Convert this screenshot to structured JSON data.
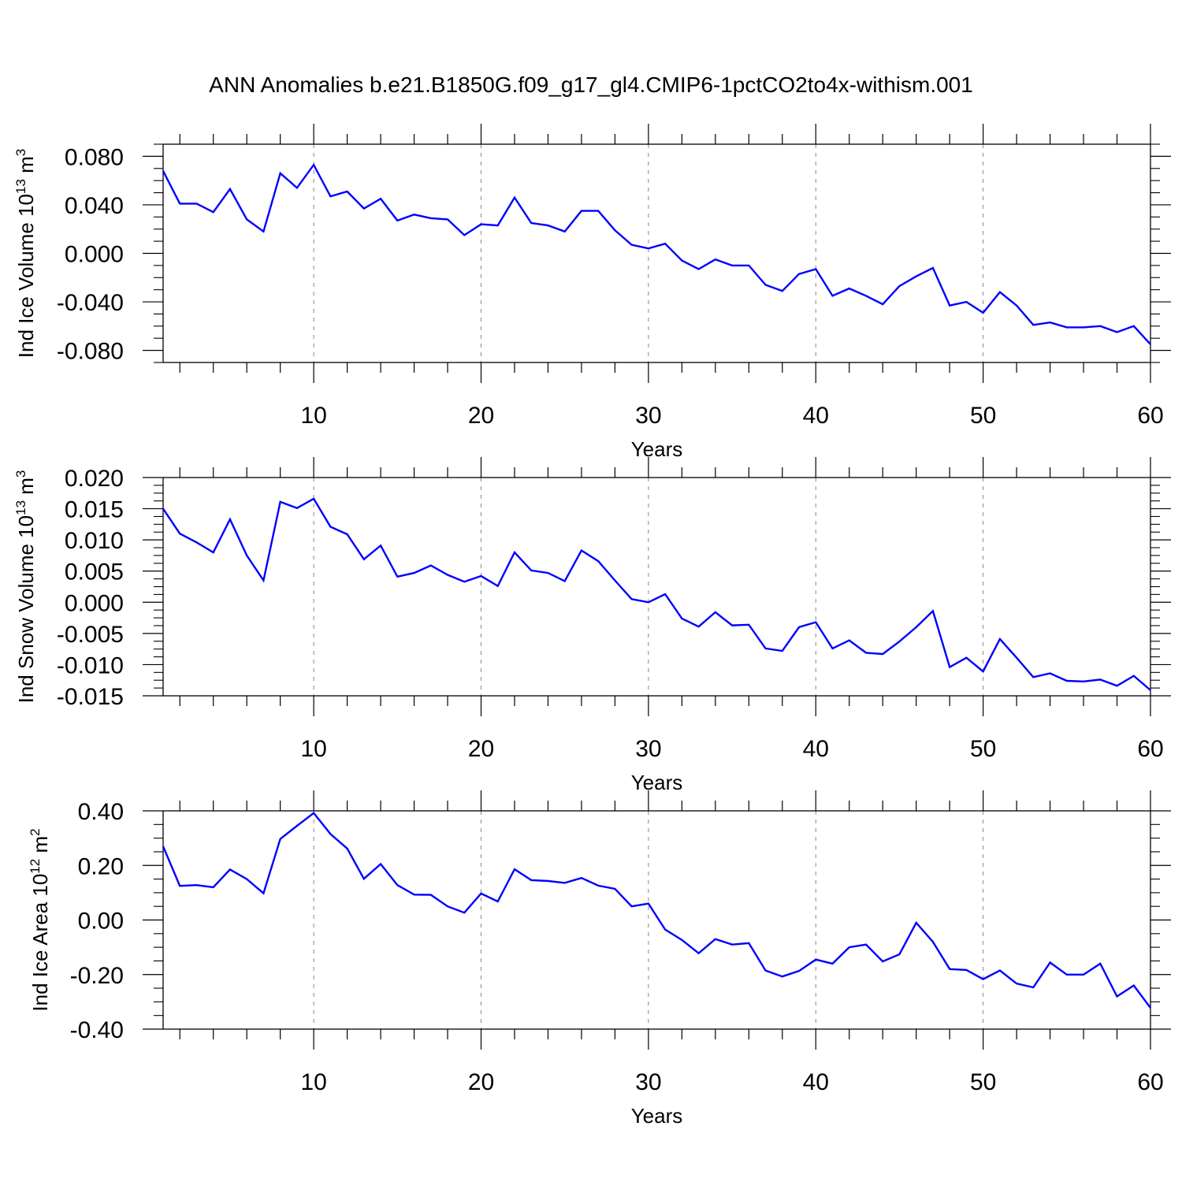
{
  "title": "ANN Anomalies b.e21.B1850G.f09_g17_gl4.CMIP6-1pctCO2to4x-withism.001",
  "colors": {
    "series": "#0000ff",
    "axis": "#000000",
    "grid": "#888888"
  },
  "chart_data": [
    {
      "type": "line",
      "title": "",
      "xlabel": "Years",
      "ylabel": {
        "main": "Ind Ice Volume 10",
        "sup": "13",
        "tail": " m",
        "sup2": "3"
      },
      "xlim": [
        1,
        60
      ],
      "ylim": [
        -0.09,
        0.09
      ],
      "xticks": [
        10,
        20,
        30,
        40,
        50,
        60
      ],
      "yticks": [
        -0.08,
        -0.04,
        0.0,
        0.04,
        0.08
      ],
      "ytick_labels": [
        "-0.080",
        "-0.040",
        "0.000",
        "0.040",
        "0.080"
      ],
      "vgrid": [
        10,
        20,
        30,
        40,
        50
      ],
      "x": [
        1,
        2,
        3,
        4,
        5,
        6,
        7,
        8,
        9,
        10,
        11,
        12,
        13,
        14,
        15,
        16,
        17,
        18,
        19,
        20,
        21,
        22,
        23,
        24,
        25,
        26,
        27,
        28,
        29,
        30,
        31,
        32,
        33,
        34,
        35,
        36,
        37,
        38,
        39,
        40,
        41,
        42,
        43,
        44,
        45,
        46,
        47,
        48,
        49,
        50,
        51,
        52,
        53,
        54,
        55,
        56,
        57,
        58,
        59,
        60
      ],
      "series": [
        {
          "values": [
            0.068,
            0.041,
            0.041,
            0.034,
            0.053,
            0.028,
            0.018,
            0.066,
            0.054,
            0.073,
            0.047,
            0.051,
            0.037,
            0.045,
            0.027,
            0.032,
            0.029,
            0.028,
            0.015,
            0.024,
            0.023,
            0.046,
            0.025,
            0.023,
            0.018,
            0.035,
            0.035,
            0.019,
            0.007,
            0.004,
            0.008,
            -0.006,
            -0.013,
            -0.005,
            -0.01,
            -0.01,
            -0.026,
            -0.031,
            -0.017,
            -0.013,
            -0.035,
            -0.029,
            -0.035,
            -0.042,
            -0.027,
            -0.019,
            -0.012,
            -0.043,
            -0.04,
            -0.049,
            -0.032,
            -0.043,
            -0.059,
            -0.057,
            -0.061,
            -0.061,
            -0.06,
            -0.065,
            -0.06,
            -0.075
          ]
        }
      ]
    },
    {
      "type": "line",
      "title": "",
      "xlabel": "Years",
      "ylabel": {
        "main": "Ind Snow Volume 10",
        "sup": "13",
        "tail": " m",
        "sup2": "3"
      },
      "xlim": [
        1,
        60
      ],
      "ylim": [
        -0.015,
        0.02
      ],
      "xticks": [
        10,
        20,
        30,
        40,
        50,
        60
      ],
      "yticks": [
        -0.015,
        -0.01,
        -0.005,
        0.0,
        0.005,
        0.01,
        0.015,
        0.02
      ],
      "ytick_labels": [
        "-0.015",
        "-0.010",
        "-0.005",
        "0.000",
        "0.005",
        "0.010",
        "0.015",
        "0.020"
      ],
      "vgrid": [
        10,
        20,
        30,
        40,
        50
      ],
      "x": [
        1,
        2,
        3,
        4,
        5,
        6,
        7,
        8,
        9,
        10,
        11,
        12,
        13,
        14,
        15,
        16,
        17,
        18,
        19,
        20,
        21,
        22,
        23,
        24,
        25,
        26,
        27,
        28,
        29,
        30,
        31,
        32,
        33,
        34,
        35,
        36,
        37,
        38,
        39,
        40,
        41,
        42,
        43,
        44,
        45,
        46,
        47,
        48,
        49,
        50,
        51,
        52,
        53,
        54,
        55,
        56,
        57,
        58,
        59,
        60
      ],
      "series": [
        {
          "values": [
            0.015,
            0.011,
            0.0096,
            0.008,
            0.0133,
            0.0075,
            0.0035,
            0.0161,
            0.0151,
            0.0166,
            0.0121,
            0.0109,
            0.0069,
            0.0091,
            0.0041,
            0.0047,
            0.0059,
            0.0044,
            0.0033,
            0.0042,
            0.0026,
            0.008,
            0.0051,
            0.0047,
            0.0034,
            0.0083,
            0.0066,
            0.0035,
            0.0005,
            0.0,
            0.0013,
            -0.0026,
            -0.0039,
            -0.0016,
            -0.0037,
            -0.0036,
            -0.0074,
            -0.0078,
            -0.004,
            -0.0032,
            -0.0074,
            -0.0061,
            -0.0081,
            -0.0083,
            -0.0063,
            -0.004,
            -0.0014,
            -0.0104,
            -0.0089,
            -0.0111,
            -0.0059,
            -0.0089,
            -0.012,
            -0.0114,
            -0.0126,
            -0.0127,
            -0.0124,
            -0.0134,
            -0.0118,
            -0.0141
          ]
        }
      ]
    },
    {
      "type": "line",
      "title": "",
      "xlabel": "Years",
      "ylabel": {
        "main": "Ind Ice Area 10",
        "sup": "12",
        "tail": " m",
        "sup2": "2"
      },
      "xlim": [
        1,
        60
      ],
      "ylim": [
        -0.4,
        0.4
      ],
      "xticks": [
        10,
        20,
        30,
        40,
        50,
        60
      ],
      "yticks": [
        -0.4,
        -0.2,
        0.0,
        0.2,
        0.4
      ],
      "ytick_labels": [
        "-0.40",
        "-0.20",
        "0.00",
        "0.20",
        "0.40"
      ],
      "vgrid": [
        10,
        20,
        30,
        40,
        50
      ],
      "x": [
        1,
        2,
        3,
        4,
        5,
        6,
        7,
        8,
        9,
        10,
        11,
        12,
        13,
        14,
        15,
        16,
        17,
        18,
        19,
        20,
        21,
        22,
        23,
        24,
        25,
        26,
        27,
        28,
        29,
        30,
        31,
        32,
        33,
        34,
        35,
        36,
        37,
        38,
        39,
        40,
        41,
        42,
        43,
        44,
        45,
        46,
        47,
        48,
        49,
        50,
        51,
        52,
        53,
        54,
        55,
        56,
        57,
        58,
        59,
        60
      ],
      "series": [
        {
          "values": [
            0.27,
            0.125,
            0.128,
            0.12,
            0.185,
            0.15,
            0.098,
            0.297,
            0.345,
            0.392,
            0.315,
            0.262,
            0.151,
            0.205,
            0.128,
            0.093,
            0.092,
            0.05,
            0.027,
            0.097,
            0.068,
            0.186,
            0.146,
            0.143,
            0.136,
            0.154,
            0.126,
            0.114,
            0.05,
            0.06,
            -0.035,
            -0.073,
            -0.122,
            -0.07,
            -0.09,
            -0.085,
            -0.185,
            -0.207,
            -0.187,
            -0.145,
            -0.16,
            -0.1,
            -0.09,
            -0.152,
            -0.126,
            -0.01,
            -0.08,
            -0.18,
            -0.183,
            -0.217,
            -0.185,
            -0.233,
            -0.247,
            -0.156,
            -0.2,
            -0.2,
            -0.16,
            -0.28,
            -0.24,
            -0.322
          ]
        }
      ]
    }
  ]
}
